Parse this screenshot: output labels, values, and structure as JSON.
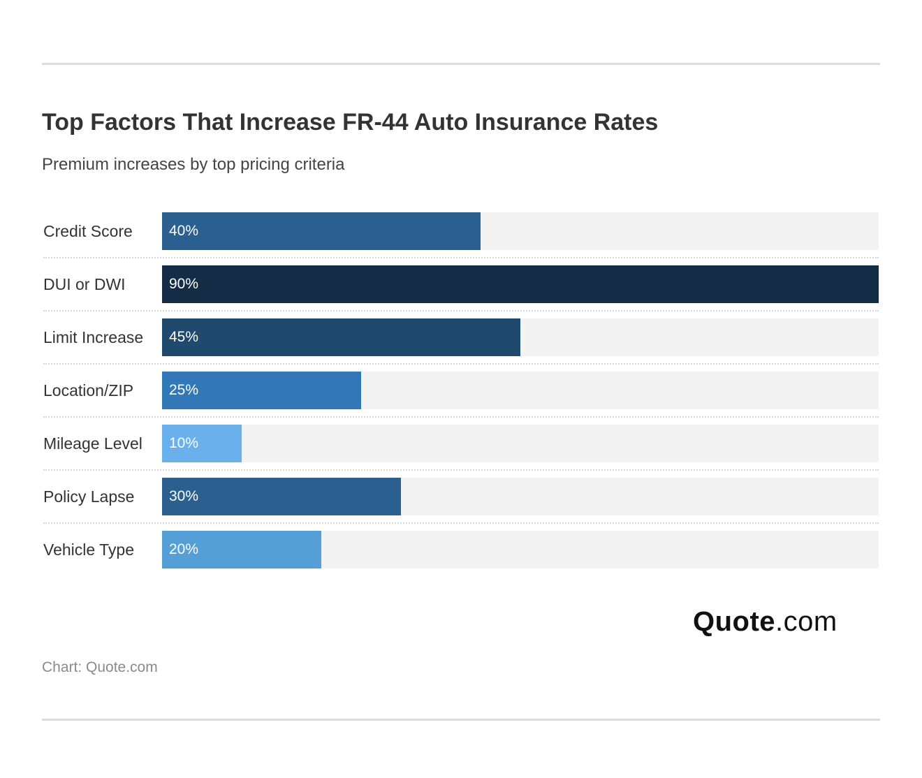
{
  "title": "Top Factors That Increase FR-44 Auto Insurance Rates",
  "subtitle": "Premium increases by top pricing criteria",
  "source": "Chart: Quote.com",
  "logo": {
    "bold": "Quote",
    "light": ".com"
  },
  "chart_data": {
    "type": "bar",
    "orientation": "horizontal",
    "title": "Top Factors That Increase FR-44 Auto Insurance Rates",
    "subtitle": "Premium increases by top pricing criteria",
    "categories": [
      "Credit Score",
      "DUI or DWI",
      "Limit Increase",
      "Location/ZIP",
      "Mileage Level",
      "Policy Lapse",
      "Vehicle Type"
    ],
    "values": [
      40,
      90,
      45,
      25,
      10,
      30,
      20
    ],
    "value_labels": [
      "40%",
      "90%",
      "45%",
      "25%",
      "10%",
      "30%",
      "20%"
    ],
    "colors": [
      "#2a5f8f",
      "#142c45",
      "#1f4a6e",
      "#3278b6",
      "#6ab0ec",
      "#2a5f8f",
      "#569fd6"
    ],
    "track_color": "#f3f3f3",
    "xlim": [
      0,
      90
    ],
    "grid": false,
    "legend": "none"
  }
}
